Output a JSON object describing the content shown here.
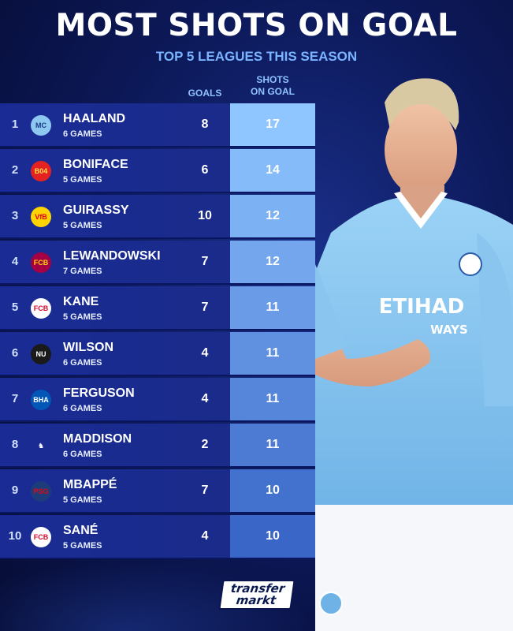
{
  "header": {
    "title": "MOST SHOTS ON GOAL",
    "subtitle": "TOP 5 LEAGUES THIS SEASON"
  },
  "columns": {
    "goals": "GOALS",
    "shots_line1": "SHOTS",
    "shots_line2": "ON GOAL"
  },
  "colors": {
    "title": "#ffffff",
    "subtitle": "#7ab4ff",
    "row_bg": "#1a2b95",
    "shots_bg_top": "#8fc6ff",
    "shots_bg_bottom": "#3a66c8",
    "jersey": "#8cc8f0"
  },
  "chart_data": {
    "type": "table",
    "title": "MOST SHOTS ON GOAL",
    "subtitle": "TOP 5 LEAGUES THIS SEASON",
    "columns": [
      "",
      "",
      "GOALS",
      "SHOTS ON GOAL"
    ],
    "rows": [
      {
        "rank": "1",
        "player": "HAALAND",
        "games": "6 GAMES",
        "goals": "8",
        "shots": "17",
        "crest": "man-city-crest-icon"
      },
      {
        "rank": "2",
        "player": "BONIFACE",
        "games": "5 GAMES",
        "goals": "6",
        "shots": "14",
        "crest": "leverkusen-crest-icon"
      },
      {
        "rank": "3",
        "player": "GUIRASSY",
        "games": "5 GAMES",
        "goals": "10",
        "shots": "12",
        "crest": "stuttgart-crest-icon"
      },
      {
        "rank": "4",
        "player": "LEWANDOWSKI",
        "games": "7 GAMES",
        "goals": "7",
        "shots": "12",
        "crest": "barcelona-crest-icon"
      },
      {
        "rank": "5",
        "player": "KANE",
        "games": "5 GAMES",
        "goals": "7",
        "shots": "11",
        "crest": "bayern-crest-icon"
      },
      {
        "rank": "6",
        "player": "WILSON",
        "games": "6 GAMES",
        "goals": "4",
        "shots": "11",
        "crest": "newcastle-crest-icon"
      },
      {
        "rank": "7",
        "player": "FERGUSON",
        "games": "6 GAMES",
        "goals": "4",
        "shots": "11",
        "crest": "brighton-crest-icon"
      },
      {
        "rank": "8",
        "player": "MADDISON",
        "games": "6 GAMES",
        "goals": "2",
        "shots": "11",
        "crest": "tottenham-crest-icon"
      },
      {
        "rank": "9",
        "player": "MBAPPÉ",
        "games": "5 GAMES",
        "goals": "7",
        "shots": "10",
        "crest": "psg-crest-icon"
      },
      {
        "rank": "10",
        "player": "SANÉ",
        "games": "5 GAMES",
        "goals": "4",
        "shots": "10",
        "crest": "bayern-crest-icon"
      }
    ]
  },
  "jersey": {
    "sponsor_line1": "ETIHAD",
    "sponsor_line2": "WAYS"
  },
  "footer": {
    "logo_line1": "transfer",
    "logo_line2": "markt"
  }
}
